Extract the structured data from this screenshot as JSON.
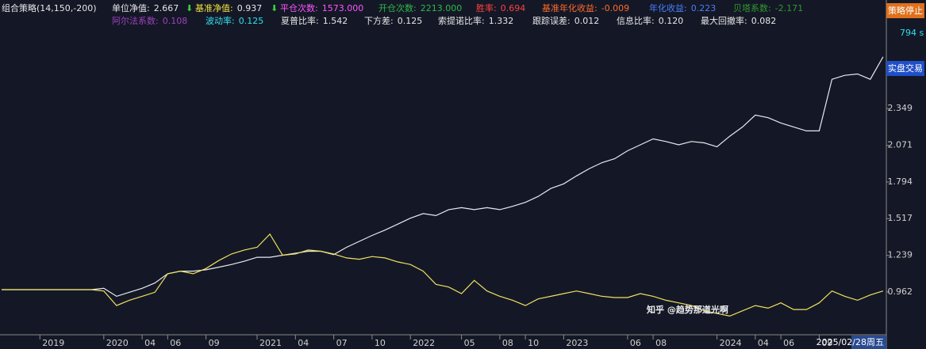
{
  "header": {
    "strategy": "组合策略(14,150,-200)",
    "stats": [
      {
        "label": "单位净值:",
        "value": "2.667",
        "color": "#e6e6e6",
        "value_color": "#e6e6e6"
      },
      {
        "label": "基准净值:",
        "value": "0.937",
        "color": "#f0e040",
        "value_color": "#e6e6e6"
      },
      {
        "label": "平仓次数:",
        "value": "1573.000",
        "color": "#ff55ff",
        "value_color": "#ff55ff"
      },
      {
        "label": "开仓次数:",
        "value": "2213.000",
        "color": "#2fb84a",
        "value_color": "#2fb84a"
      },
      {
        "label": "胜率:",
        "value": "0.694",
        "color": "#ff4040",
        "value_color": "#ff4040"
      },
      {
        "label": "基准年化收益:",
        "value": "-0.009",
        "color": "#ff6a2a",
        "value_color": "#ff6a2a"
      },
      {
        "label": "年化收益:",
        "value": "0.223",
        "color": "#4a7cff",
        "value_color": "#4a7cff"
      },
      {
        "label": "贝塔系数:",
        "value": "-2.171",
        "color": "#2f9a2f",
        "value_color": "#2f9a2f"
      },
      {
        "label": "阿尔法系数:",
        "value": "0.108",
        "color": "#a040c0",
        "value_color": "#a040c0"
      },
      {
        "label": "波动率:",
        "value": "0.125",
        "color": "#30e0f0",
        "value_color": "#30e0f0"
      },
      {
        "label": "夏普比率:",
        "value": "1.542",
        "color": "#e6e6e6",
        "value_color": "#e6e6e6"
      },
      {
        "label": "下方差:",
        "value": "0.125",
        "color": "#e6e6e6",
        "value_color": "#e6e6e6"
      },
      {
        "label": "索提诺比率:",
        "value": "1.332",
        "color": "#e6e6e6",
        "value_color": "#e6e6e6"
      },
      {
        "label": "跟踪误差:",
        "value": "0.012",
        "color": "#e6e6e6",
        "value_color": "#e6e6e6"
      },
      {
        "label": "信息比率:",
        "value": "0.120",
        "color": "#e6e6e6",
        "value_color": "#e6e6e6"
      },
      {
        "label": "最大回撤率:",
        "value": "0.082",
        "color": "#e6e6e6",
        "value_color": "#e6e6e6"
      }
    ]
  },
  "panel": {
    "stop_button": "策略停止",
    "timer": "794 s",
    "live_button": "实盘交易"
  },
  "watermark": "知乎 @趋势那道光啊",
  "chart_data": {
    "type": "line",
    "categories": [
      null,
      null,
      null,
      "2019",
      null,
      null,
      null,
      null,
      "2020",
      null,
      null,
      "04",
      null,
      "06",
      null,
      null,
      "09",
      null,
      null,
      null,
      "2021",
      null,
      null,
      "04",
      null,
      null,
      "07",
      null,
      null,
      "10",
      null,
      null,
      "2022",
      null,
      null,
      null,
      "05",
      null,
      null,
      "08",
      null,
      "10",
      null,
      null,
      "2023",
      null,
      null,
      null,
      null,
      "06",
      null,
      "08",
      null,
      null,
      null,
      null,
      "2024",
      null,
      null,
      "04",
      null,
      "06",
      null,
      null,
      "09",
      null,
      null,
      null,
      null,
      "2025/02/28周五"
    ],
    "series": [
      {
        "color": "#e8e8f0",
        "values": [
          0.98,
          0.98,
          0.98,
          0.98,
          0.98,
          0.98,
          0.98,
          0.98,
          0.99,
          0.93,
          0.96,
          0.99,
          1.03,
          1.1,
          1.12,
          1.12,
          1.13,
          1.15,
          1.17,
          1.195,
          1.225,
          1.225,
          1.24,
          1.255,
          1.27,
          1.27,
          1.245,
          1.3,
          1.345,
          1.39,
          1.43,
          1.475,
          1.52,
          1.555,
          1.54,
          1.585,
          1.6,
          1.585,
          1.6,
          1.585,
          1.61,
          1.64,
          1.685,
          1.745,
          1.78,
          1.84,
          1.895,
          1.94,
          1.97,
          2.03,
          2.075,
          2.12,
          2.1,
          2.075,
          2.1,
          2.09,
          2.06,
          2.14,
          2.21,
          2.3,
          2.28,
          2.24,
          2.21,
          2.18,
          2.18,
          2.57,
          2.6,
          2.61,
          2.57,
          2.74
        ]
      },
      {
        "color": "#f0e060",
        "values": [
          0.98,
          0.98,
          0.98,
          0.98,
          0.98,
          0.98,
          0.98,
          0.98,
          0.97,
          0.86,
          0.9,
          0.93,
          0.96,
          1.1,
          1.12,
          1.1,
          1.14,
          1.2,
          1.25,
          1.28,
          1.3,
          1.4,
          1.24,
          1.25,
          1.28,
          1.27,
          1.25,
          1.22,
          1.21,
          1.23,
          1.22,
          1.19,
          1.17,
          1.12,
          1.02,
          1.0,
          0.95,
          1.05,
          0.97,
          0.93,
          0.9,
          0.86,
          0.91,
          0.93,
          0.95,
          0.97,
          0.95,
          0.93,
          0.92,
          0.92,
          0.95,
          0.93,
          0.9,
          0.88,
          0.86,
          0.82,
          0.8,
          0.78,
          0.82,
          0.86,
          0.84,
          0.88,
          0.83,
          0.83,
          0.88,
          0.97,
          0.93,
          0.9,
          0.94,
          0.97
        ]
      }
    ],
    "ylim": [
      0.645,
      3.05
    ],
    "yticks": [
      0.962,
      1.239,
      1.517,
      1.794,
      2.071,
      2.349
    ],
    "grid": false
  }
}
